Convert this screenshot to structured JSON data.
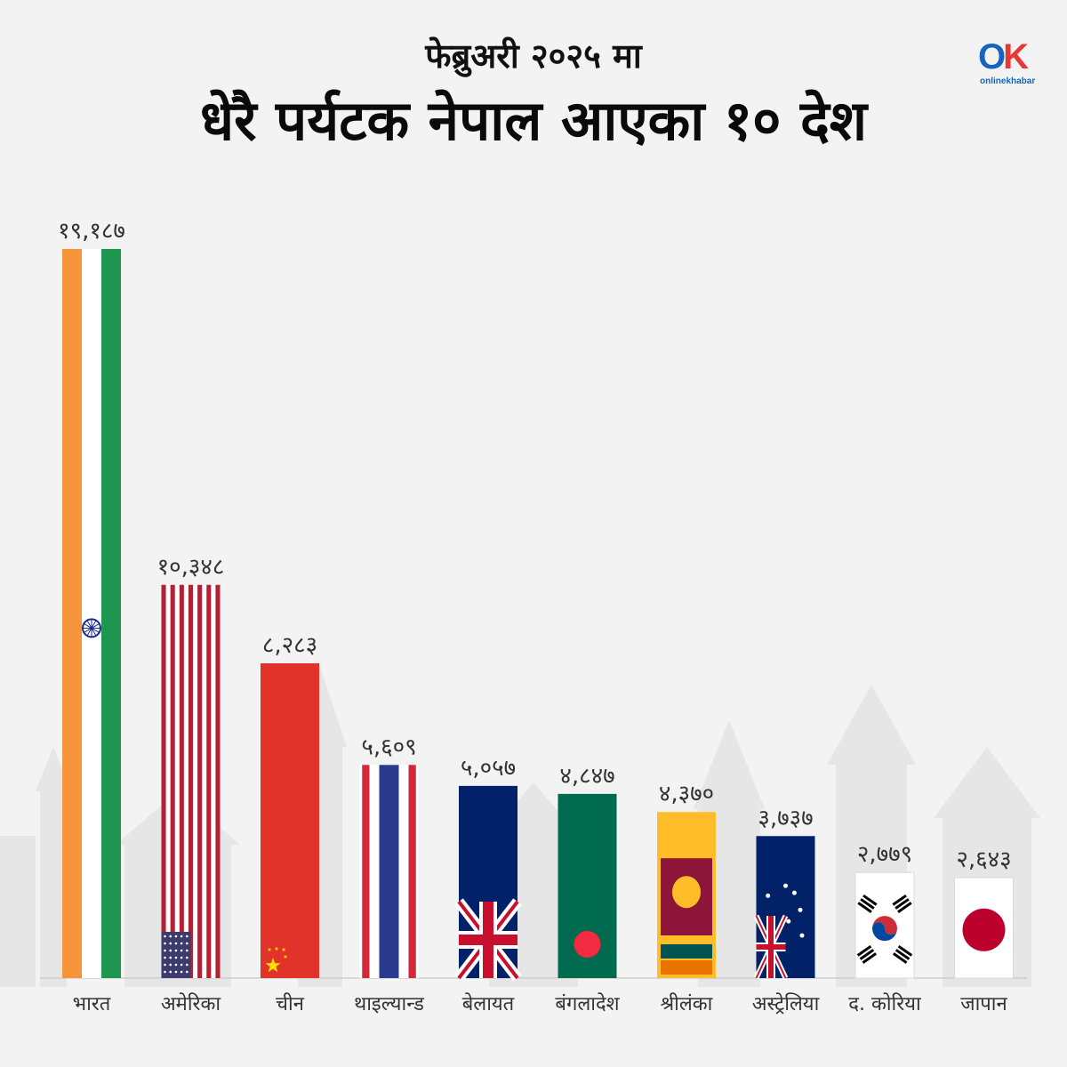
{
  "header": {
    "subtitle": "फेब्रुअरी २०२५ मा",
    "title": "धेरै पर्यटक नेपाल आएका १० देश"
  },
  "logo": {
    "mark": "OK",
    "text": "onlinekhabar"
  },
  "colors": {
    "background": "#f3f3f3",
    "india_saffron": "#f7953b",
    "india_green": "#1e9650",
    "usa_red": "#b22234",
    "usa_blue": "#3c3b6e",
    "china_red": "#e2332a",
    "thai_red": "#d1283a",
    "thai_blue": "#2a3b8f",
    "uk_navy": "#012169",
    "bangladesh_green": "#006a4e",
    "srilanka_gold": "#ffbe29",
    "srilanka_maroon": "#8d153a",
    "australia_navy": "#012169",
    "japan_red": "#bc002d"
  },
  "chart_data": {
    "type": "bar",
    "title": "धेरै पर्यटक नेपाल आएका १० देश",
    "subtitle": "फेब्रुअरी २०२५ मा",
    "xlabel": "",
    "ylabel": "",
    "ylim": [
      0,
      19187
    ],
    "grid": false,
    "categories": [
      "भारत",
      "अमेरिका",
      "चीन",
      "थाइल्यान्ड",
      "बेलायत",
      "बंगलादेश",
      "श्रीलंका",
      "अस्ट्रेलिया",
      "द. कोरिया",
      "जापान"
    ],
    "values": [
      19187,
      10348,
      8283,
      5609,
      5057,
      4847,
      4370,
      3737,
      2779,
      2643
    ],
    "value_labels": [
      "१९,१८७",
      "१०,३४८",
      "८,२८३",
      "५,६०९",
      "५,०५७",
      "४,८४७",
      "४,३७०",
      "३,७३७",
      "२,७७९",
      "२,६४३"
    ],
    "flags": [
      "india-flag",
      "usa-flag",
      "china-flag",
      "thailand-flag",
      "uk-flag",
      "bangladesh-flag",
      "srilanka-flag",
      "australia-flag",
      "south-korea-flag",
      "japan-flag"
    ]
  }
}
